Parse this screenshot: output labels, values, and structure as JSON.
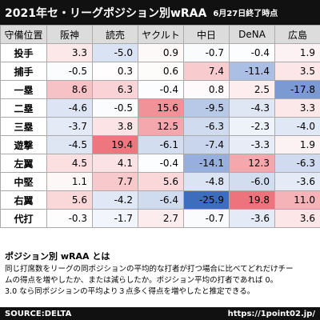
{
  "header": {
    "title": "2021年セ・リーグポジション別wRAA",
    "subtitle": "6月27日終了時点"
  },
  "table": {
    "columns": [
      "守備位置",
      "阪神",
      "読売",
      "ヤクルト",
      "中日",
      "DeNA",
      "広島"
    ],
    "rows": [
      [
        "投手",
        "3.3",
        "-5.0",
        "0.9",
        "-0.7",
        "-0.4",
        "1.9"
      ],
      [
        "捕手",
        "-0.5",
        "0.3",
        "0.6",
        "7.4",
        "-11.4",
        "3.5"
      ],
      [
        "一塁",
        "8.6",
        "6.3",
        "-0.4",
        "0.8",
        "2.5",
        "-17.8"
      ],
      [
        "二塁",
        "-4.6",
        "-0.5",
        "15.6",
        "-9.5",
        "-4.3",
        "3.3"
      ],
      [
        "三塁",
        "-3.7",
        "3.8",
        "12.5",
        "-6.3",
        "-2.3",
        "-4.0"
      ],
      [
        "遊撃",
        "-4.5",
        "19.4",
        "-6.1",
        "-7.4",
        "-3.3",
        "1.9"
      ],
      [
        "左翼",
        "4.5",
        "4.1",
        "-0.4",
        "-14.1",
        "12.3",
        "-6.3"
      ],
      [
        "中堅",
        "1.1",
        "7.7",
        "5.6",
        "-4.8",
        "-6.0",
        "-3.6"
      ],
      [
        "右翼",
        "5.6",
        "-4.2",
        "-6.4",
        "-25.9",
        "19.8",
        "11.0"
      ],
      [
        "代打",
        "-0.3",
        "-1.7",
        "2.7",
        "-0.7",
        "-3.6",
        "3.6"
      ]
    ]
  },
  "note": {
    "heading": "ポジション別 wRAA とは",
    "lines": [
      "同じ打席数をリーグの同ポジションの平均的な打者が打つ場合に比べてどれだけチー",
      "ムの得点を増やしたか、または減らしたか。ポジション平均の打者であれば 0。",
      "3.0 なら同ポジションの平均より３点多く得点を増やしたと推定できる。"
    ]
  },
  "footer": {
    "source": "SOURCE:DELTA",
    "url": "https://1point02.jp/"
  }
}
